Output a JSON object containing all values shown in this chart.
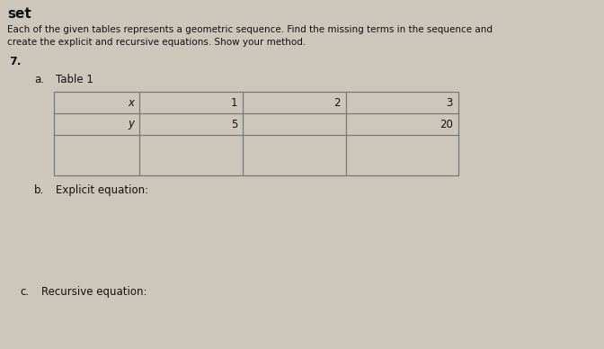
{
  "background_color": "#cdc6ba",
  "header_text": "set",
  "instruction_line1": "Each of the given tables represents a geometric sequence. Find the missing terms in the sequence and",
  "instruction_line2": "create the explicit and recursive equations. Show your method.",
  "problem_number": "7.",
  "part_a_label": "a.",
  "part_a_text": "Table 1",
  "table_x_label": "x",
  "table_y_label": "y",
  "table_x_values": [
    "1",
    "2",
    "3"
  ],
  "table_y_values": [
    "5",
    "",
    "20"
  ],
  "part_b_label": "b.",
  "part_b_text": "Explicit equation:",
  "part_c_label": "c.",
  "part_c_text": "Recursive equation:",
  "font_color": "#111111",
  "table_line_color": "#777777",
  "figsize": [
    6.72,
    3.88
  ],
  "dpi": 100
}
